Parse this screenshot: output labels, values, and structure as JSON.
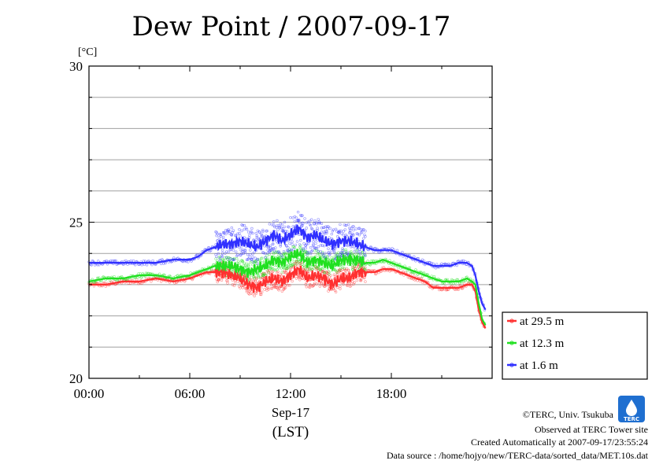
{
  "chart_data": {
    "type": "line",
    "title": "Dew Point / 2007-09-17",
    "ylabel": "[°C]",
    "xlabel_date": "Sep-17",
    "xlabel_unit": "(LST)",
    "ylim": [
      20,
      30
    ],
    "y_ticks": [
      "20",
      "25",
      "30"
    ],
    "xlim_hours": [
      0,
      24
    ],
    "x_ticks": [
      "00:00",
      "06:00",
      "12:00",
      "18:00"
    ],
    "grid": true,
    "legend_position": "right, below plot area",
    "series": [
      {
        "name": "at 29.5 m",
        "color": "#ff3030",
        "hours": [
          0,
          1,
          2,
          3,
          4,
          5,
          6,
          6.5,
          7,
          7.5,
          8,
          8.5,
          9,
          9.5,
          10,
          10.5,
          11,
          11.5,
          12,
          12.5,
          13,
          13.5,
          14,
          14.5,
          15,
          15.5,
          16,
          16.5,
          17,
          17.5,
          18,
          18.5,
          19,
          19.5,
          20,
          20.5,
          21,
          21.5,
          22,
          22.5,
          22.8,
          23,
          23.2,
          23.4,
          23.6
        ],
        "values": [
          23.0,
          23.0,
          23.1,
          23.1,
          23.2,
          23.1,
          23.2,
          23.3,
          23.4,
          23.4,
          23.4,
          23.3,
          23.2,
          23.0,
          22.9,
          23.1,
          23.2,
          23.1,
          23.3,
          23.5,
          23.2,
          23.3,
          23.2,
          23.0,
          23.2,
          23.2,
          23.4,
          23.4,
          23.4,
          23.5,
          23.5,
          23.4,
          23.3,
          23.2,
          23.1,
          22.9,
          22.9,
          22.9,
          22.9,
          23.0,
          23.0,
          22.8,
          22.2,
          21.8,
          21.6
        ]
      },
      {
        "name": "at 12.3 m",
        "color": "#20e020",
        "hours": [
          0,
          1,
          2,
          3,
          4,
          5,
          6,
          6.5,
          7,
          7.5,
          8,
          8.5,
          9,
          9.5,
          10,
          10.5,
          11,
          11.5,
          12,
          12.5,
          13,
          13.5,
          14,
          14.5,
          15,
          15.5,
          16,
          16.5,
          17,
          17.5,
          18,
          18.5,
          19,
          19.5,
          20,
          20.5,
          21,
          21.5,
          22,
          22.5,
          22.8,
          23,
          23.2,
          23.4,
          23.6
        ],
        "values": [
          23.1,
          23.2,
          23.2,
          23.3,
          23.3,
          23.2,
          23.3,
          23.4,
          23.5,
          23.6,
          23.6,
          23.6,
          23.5,
          23.4,
          23.5,
          23.6,
          23.8,
          23.7,
          23.9,
          24.0,
          23.7,
          23.8,
          23.7,
          23.6,
          23.8,
          23.8,
          23.8,
          23.7,
          23.7,
          23.8,
          23.7,
          23.6,
          23.5,
          23.4,
          23.3,
          23.2,
          23.1,
          23.1,
          23.1,
          23.2,
          23.1,
          23.0,
          22.4,
          21.9,
          21.7
        ]
      },
      {
        "name": "at 1.6 m",
        "color": "#3030ff",
        "hours": [
          0,
          1,
          2,
          3,
          4,
          5,
          6,
          6.5,
          7,
          7.5,
          8,
          8.5,
          9,
          9.5,
          10,
          10.5,
          11,
          11.5,
          12,
          12.5,
          13,
          13.5,
          14,
          14.5,
          15,
          15.5,
          16,
          16.5,
          17,
          17.5,
          18,
          18.5,
          19,
          19.5,
          20,
          20.5,
          21,
          21.5,
          22,
          22.5,
          22.8,
          23,
          23.2,
          23.4,
          23.6
        ],
        "values": [
          23.7,
          23.7,
          23.7,
          23.7,
          23.7,
          23.8,
          23.8,
          23.9,
          24.1,
          24.2,
          24.3,
          24.3,
          24.4,
          24.3,
          24.2,
          24.4,
          24.6,
          24.4,
          24.6,
          24.8,
          24.5,
          24.6,
          24.4,
          24.3,
          24.4,
          24.4,
          24.3,
          24.2,
          24.1,
          24.1,
          24.1,
          24.0,
          23.9,
          23.8,
          23.7,
          23.6,
          23.6,
          23.6,
          23.7,
          23.7,
          23.6,
          23.3,
          22.8,
          22.4,
          22.2
        ]
      }
    ]
  },
  "credits": {
    "copyright": "©TERC, Univ. Tsukuba",
    "site": "Observed at TERC Tower site",
    "created": "Created Automatically at 2007-09-17/23:55:24",
    "source": "Data source : /home/hojyo/new/TERC-data/sorted_data/MET.10s.dat",
    "logo_text": "TERC"
  },
  "colors": {
    "grid": "#a0a0a0",
    "logo": "#1f6fd0"
  }
}
